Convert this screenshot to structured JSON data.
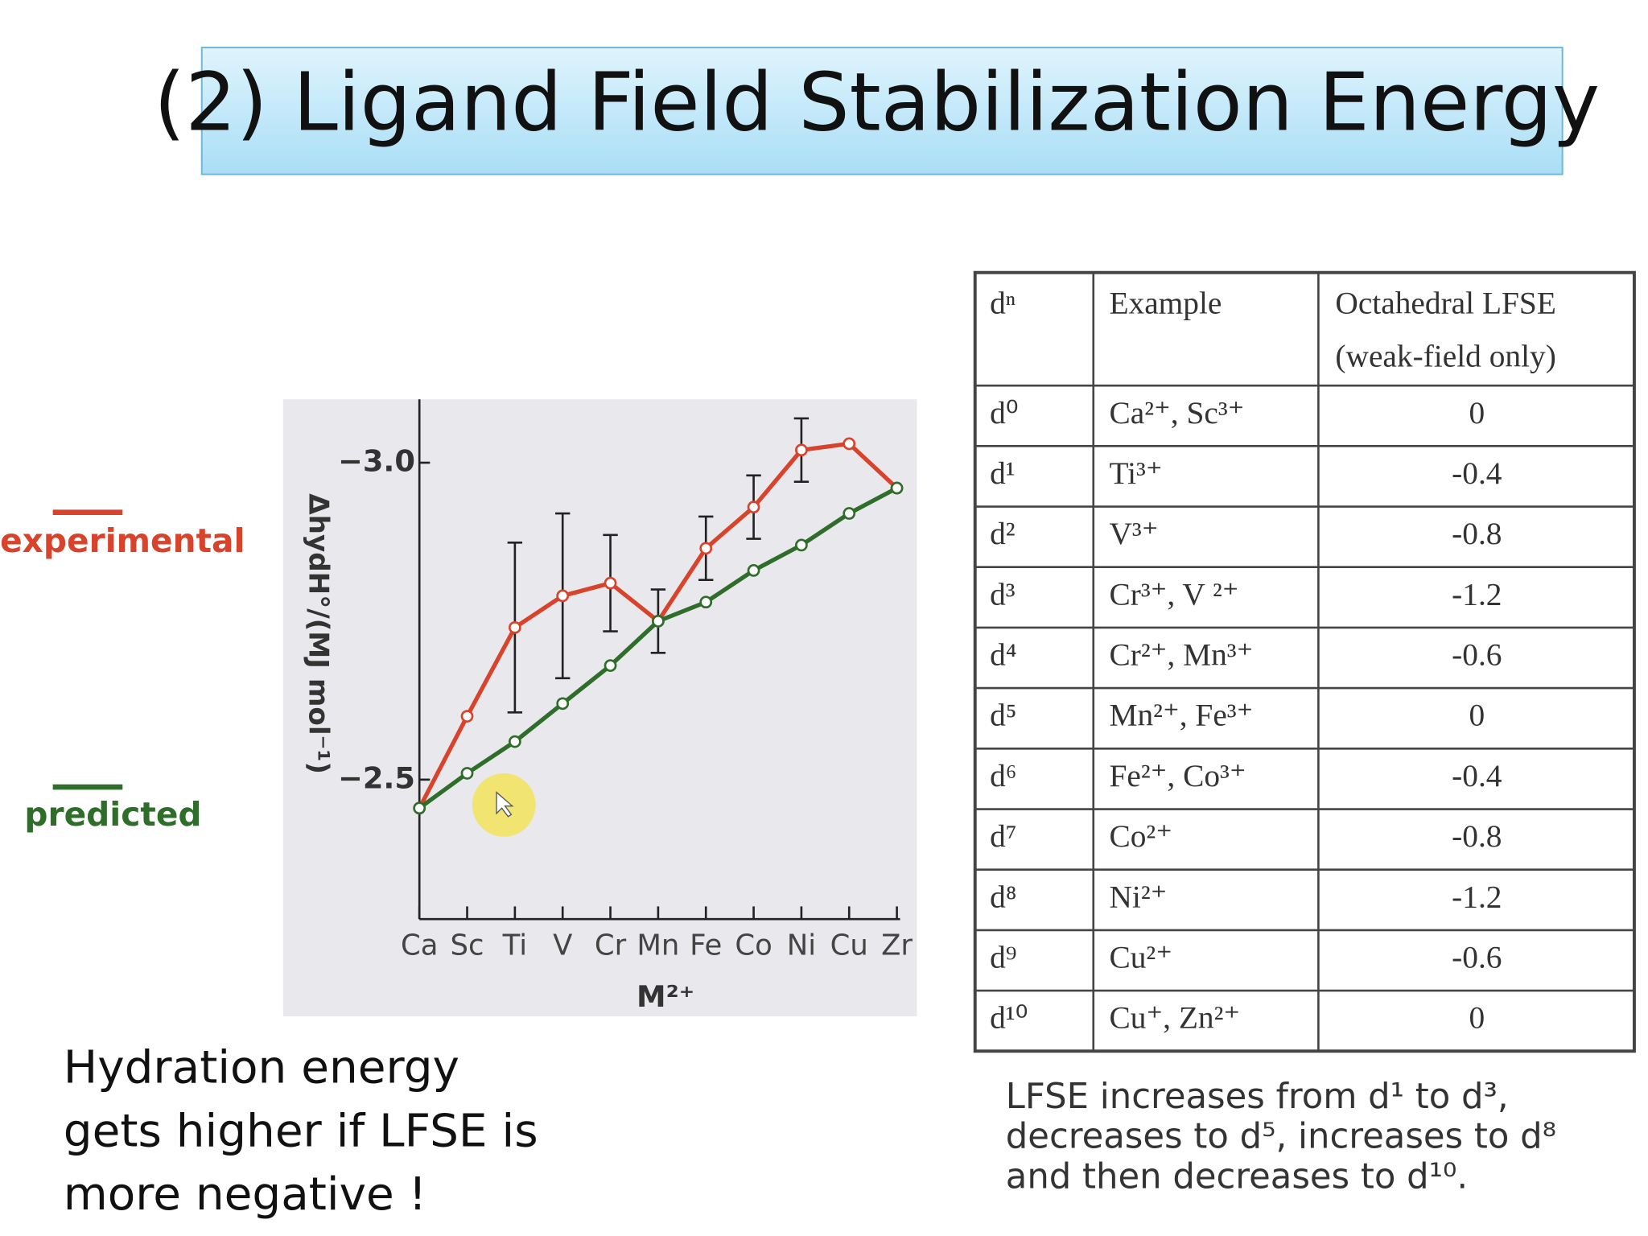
{
  "title": "(2) Ligand Field Stabilization Energy",
  "chart_data": {
    "type": "line",
    "x_label": "M²⁺",
    "y_label": "ΔhydH°/(MJ mol⁻¹)",
    "categories": [
      "Ca",
      "Sc",
      "Ti",
      "V",
      "Cr",
      "Mn",
      "Fe",
      "Co",
      "Ni",
      "Cu",
      "Zr"
    ],
    "series": [
      {
        "name": "experimental",
        "color": "#d8432c",
        "values": [
          -2.455,
          -2.6,
          -2.74,
          -2.79,
          -2.81,
          -2.75,
          -2.865,
          -2.93,
          -3.02,
          -3.03,
          -2.96
        ],
        "errors": [
          null,
          null,
          0.134,
          0.13,
          0.076,
          0.05,
          0.05,
          0.05,
          0.05,
          null,
          null
        ]
      },
      {
        "name": "predicted",
        "color": "#2f6e2a",
        "values": [
          -2.455,
          -2.51,
          -2.56,
          -2.62,
          -2.68,
          -2.75,
          -2.78,
          -2.83,
          -2.87,
          -2.92,
          -2.96
        ]
      }
    ],
    "ylim": [
      -2.28,
      -3.1
    ],
    "yticks": [
      {
        "value": -3.0,
        "label": "−3.0"
      },
      {
        "value": -2.5,
        "label": "−2.5"
      }
    ],
    "legend": "left"
  },
  "table": {
    "header": [
      "dⁿ",
      "Example",
      "Octahedral LFSE",
      "(weak-field only)"
    ],
    "rows": [
      [
        "d⁰",
        "Ca²⁺, Sc³⁺",
        "0"
      ],
      [
        "d¹",
        "Ti³⁺",
        "-0.4"
      ],
      [
        "d²",
        "V³⁺",
        "-0.8"
      ],
      [
        "d³",
        "Cr³⁺, V ²⁺",
        "-1.2"
      ],
      [
        "d⁴",
        "Cr²⁺, Mn³⁺",
        "-0.6"
      ],
      [
        "d⁵",
        "Mn²⁺, Fe³⁺",
        "0"
      ],
      [
        "d⁶",
        "Fe²⁺, Co³⁺",
        "-0.4"
      ],
      [
        "d⁷",
        "Co²⁺",
        "-0.8"
      ],
      [
        "d⁸",
        "Ni²⁺",
        "-1.2"
      ],
      [
        "d⁹",
        "Cu²⁺",
        "-0.6"
      ],
      [
        "d¹⁰",
        "Cu⁺, Zn²⁺",
        "0"
      ]
    ]
  },
  "caption": [
    "LFSE increases from d¹ to d³,",
    "decreases to d⁵, increases to d⁸",
    "and then decreases to d¹⁰."
  ],
  "note": [
    "Hydration energy",
    "gets higher if LFSE is",
    "more negative !"
  ]
}
